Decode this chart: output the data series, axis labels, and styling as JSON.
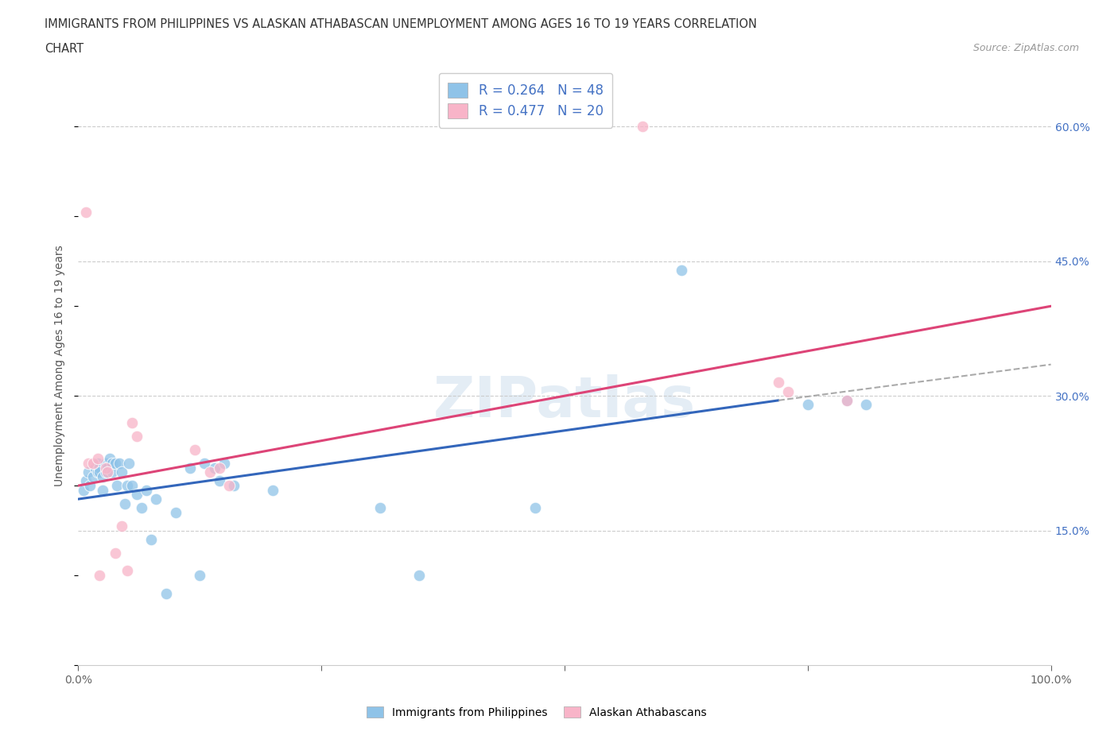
{
  "title_line1": "IMMIGRANTS FROM PHILIPPINES VS ALASKAN ATHABASCAN UNEMPLOYMENT AMONG AGES 16 TO 19 YEARS CORRELATION",
  "title_line2": "CHART",
  "source_text": "Source: ZipAtlas.com",
  "ylabel": "Unemployment Among Ages 16 to 19 years",
  "xlim": [
    0.0,
    1.0
  ],
  "ylim": [
    0.0,
    0.667
  ],
  "y_ticks_right": [
    0.15,
    0.3,
    0.45,
    0.6
  ],
  "y_tick_labels_right": [
    "15.0%",
    "30.0%",
    "45.0%",
    "60.0%"
  ],
  "x_ticks": [
    0.0,
    0.25,
    0.5,
    0.75,
    1.0
  ],
  "x_tick_labels": [
    "0.0%",
    "",
    "",
    "",
    "100.0%"
  ],
  "legend_labels": [
    "Immigrants from Philippines",
    "Alaskan Athabascans"
  ],
  "R_blue": 0.264,
  "N_blue": 48,
  "R_pink": 0.477,
  "N_pink": 20,
  "color_blue": "#8fc3e8",
  "color_pink": "#f8b4c8",
  "line_color_blue": "#3366bb",
  "line_color_pink": "#dd4477",
  "watermark": "ZIPatlas",
  "blue_x": [
    0.005,
    0.008,
    0.01,
    0.012,
    0.015,
    0.018,
    0.02,
    0.02,
    0.022,
    0.022,
    0.025,
    0.025,
    0.028,
    0.028,
    0.03,
    0.032,
    0.035,
    0.035,
    0.038,
    0.04,
    0.042,
    0.045,
    0.048,
    0.05,
    0.052,
    0.055,
    0.06,
    0.065,
    0.07,
    0.075,
    0.08,
    0.09,
    0.1,
    0.115,
    0.125,
    0.13,
    0.14,
    0.145,
    0.15,
    0.16,
    0.2,
    0.31,
    0.35,
    0.47,
    0.62,
    0.75,
    0.79,
    0.81
  ],
  "blue_y": [
    0.195,
    0.205,
    0.215,
    0.2,
    0.21,
    0.22,
    0.225,
    0.215,
    0.22,
    0.215,
    0.195,
    0.21,
    0.215,
    0.225,
    0.22,
    0.23,
    0.215,
    0.225,
    0.225,
    0.2,
    0.225,
    0.215,
    0.18,
    0.2,
    0.225,
    0.2,
    0.19,
    0.175,
    0.195,
    0.14,
    0.185,
    0.08,
    0.17,
    0.22,
    0.1,
    0.225,
    0.22,
    0.205,
    0.225,
    0.2,
    0.195,
    0.175,
    0.1,
    0.175,
    0.44,
    0.29,
    0.295,
    0.29
  ],
  "pink_x": [
    0.008,
    0.01,
    0.015,
    0.02,
    0.022,
    0.028,
    0.03,
    0.038,
    0.045,
    0.05,
    0.055,
    0.06,
    0.12,
    0.135,
    0.145,
    0.155,
    0.58,
    0.72,
    0.73,
    0.79
  ],
  "pink_y": [
    0.505,
    0.225,
    0.225,
    0.23,
    0.1,
    0.22,
    0.215,
    0.125,
    0.155,
    0.105,
    0.27,
    0.255,
    0.24,
    0.215,
    0.22,
    0.2,
    0.6,
    0.315,
    0.305,
    0.295
  ],
  "blue_line_x_start": 0.0,
  "blue_line_x_end_solid": 0.72,
  "blue_line_x_end_dashed": 1.0,
  "blue_line_y_start": 0.185,
  "blue_line_y_at_solid_end": 0.295,
  "blue_line_y_end": 0.335,
  "pink_line_x_start": 0.0,
  "pink_line_x_end": 1.0,
  "pink_line_y_start": 0.2,
  "pink_line_y_end": 0.4
}
